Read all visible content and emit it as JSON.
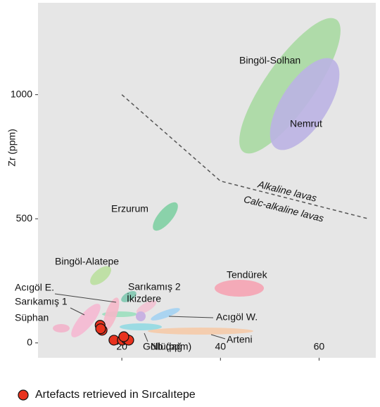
{
  "chart_data": {
    "type": "scatter",
    "x_label": "Nb (ppm)",
    "y_label": "Zr (ppm)",
    "xlim": [
      3,
      71.5
    ],
    "ylim": [
      -60,
      1370
    ],
    "xticks": [
      20,
      40,
      60
    ],
    "yticks": [
      0,
      500,
      1000
    ],
    "series": [
      {
        "name": "Artefacts retrieved in Sırcalıtepe",
        "color": "#e8321e",
        "x": [
          15.6,
          16.0,
          15.7,
          18.4,
          20.1,
          21.0,
          21.4,
          20.4
        ],
        "y": [
          71,
          51,
          57,
          11,
          11,
          14,
          11,
          25
        ]
      }
    ],
    "boundary": {
      "x": [
        20,
        40,
        70
      ],
      "y": [
        1000,
        652,
        500
      ]
    },
    "annotations": [
      "Alkaline lavas",
      "Calc-alkaline lavas"
    ],
    "fields": [
      {
        "name": "Bingöl-Solhan",
        "color": "#a9d9a2"
      },
      {
        "name": "Nemrut",
        "color": "#bbb3e3"
      },
      {
        "name": "Erzurum",
        "color": "#7fcfa3"
      },
      {
        "name": "Bingöl-Alatepe",
        "color": "#badf9f"
      },
      {
        "name": "Tendürek",
        "color": "#f5a3b3"
      },
      {
        "name": "Sarıkamış 2",
        "color": "#80c8b0"
      },
      {
        "name": "İkizdere",
        "color": "#f2c2d3"
      },
      {
        "name": "Acıgöl W.",
        "color": "#a3d2f2"
      },
      {
        "name": "Acıgöl E.",
        "color": "#f5b8c9"
      },
      {
        "name": "Sarıkamış 1",
        "color": "#f5b8d2"
      },
      {
        "name": "Süphan",
        "color": "#f2b2ca"
      },
      {
        "name": "Arteni",
        "color": "#f5caa9"
      },
      {
        "name": "Göllüdağ",
        "color": "#92d9e2"
      }
    ]
  }
}
